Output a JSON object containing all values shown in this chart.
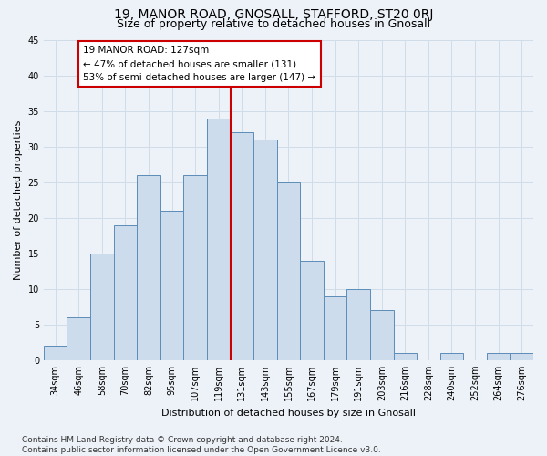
{
  "title": "19, MANOR ROAD, GNOSALL, STAFFORD, ST20 0RJ",
  "subtitle": "Size of property relative to detached houses in Gnosall",
  "xlabel": "Distribution of detached houses by size in Gnosall",
  "ylabel": "Number of detached properties",
  "bar_values": [
    2,
    6,
    15,
    19,
    26,
    21,
    26,
    34,
    32,
    31,
    25,
    14,
    9,
    10,
    7,
    1,
    0,
    1,
    0,
    1,
    1
  ],
  "bar_labels": [
    "34sqm",
    "46sqm",
    "58sqm",
    "70sqm",
    "82sqm",
    "95sqm",
    "107sqm",
    "119sqm",
    "131sqm",
    "143sqm",
    "155sqm",
    "167sqm",
    "179sqm",
    "191sqm",
    "203sqm",
    "216sqm",
    "228sqm",
    "240sqm",
    "252sqm",
    "264sqm",
    "276sqm"
  ],
  "bar_color": "#ccdcec",
  "bar_edge_color": "#5b8db8",
  "vline_x": 7.5,
  "vline_color": "#cc0000",
  "annotation_text": "19 MANOR ROAD: 127sqm\n← 47% of detached houses are smaller (131)\n53% of semi-detached houses are larger (147) →",
  "annotation_box_color": "#ffffff",
  "annotation_box_edge": "#cc0000",
  "ylim": [
    0,
    45
  ],
  "yticks": [
    0,
    5,
    10,
    15,
    20,
    25,
    30,
    35,
    40,
    45
  ],
  "grid_color": "#d0dce8",
  "background_color": "#edf2f8",
  "footnote": "Contains HM Land Registry data © Crown copyright and database right 2024.\nContains public sector information licensed under the Open Government Licence v3.0.",
  "title_fontsize": 10,
  "subtitle_fontsize": 9,
  "label_fontsize": 8,
  "tick_fontsize": 7,
  "footnote_fontsize": 6.5,
  "annot_fontsize": 7.5
}
